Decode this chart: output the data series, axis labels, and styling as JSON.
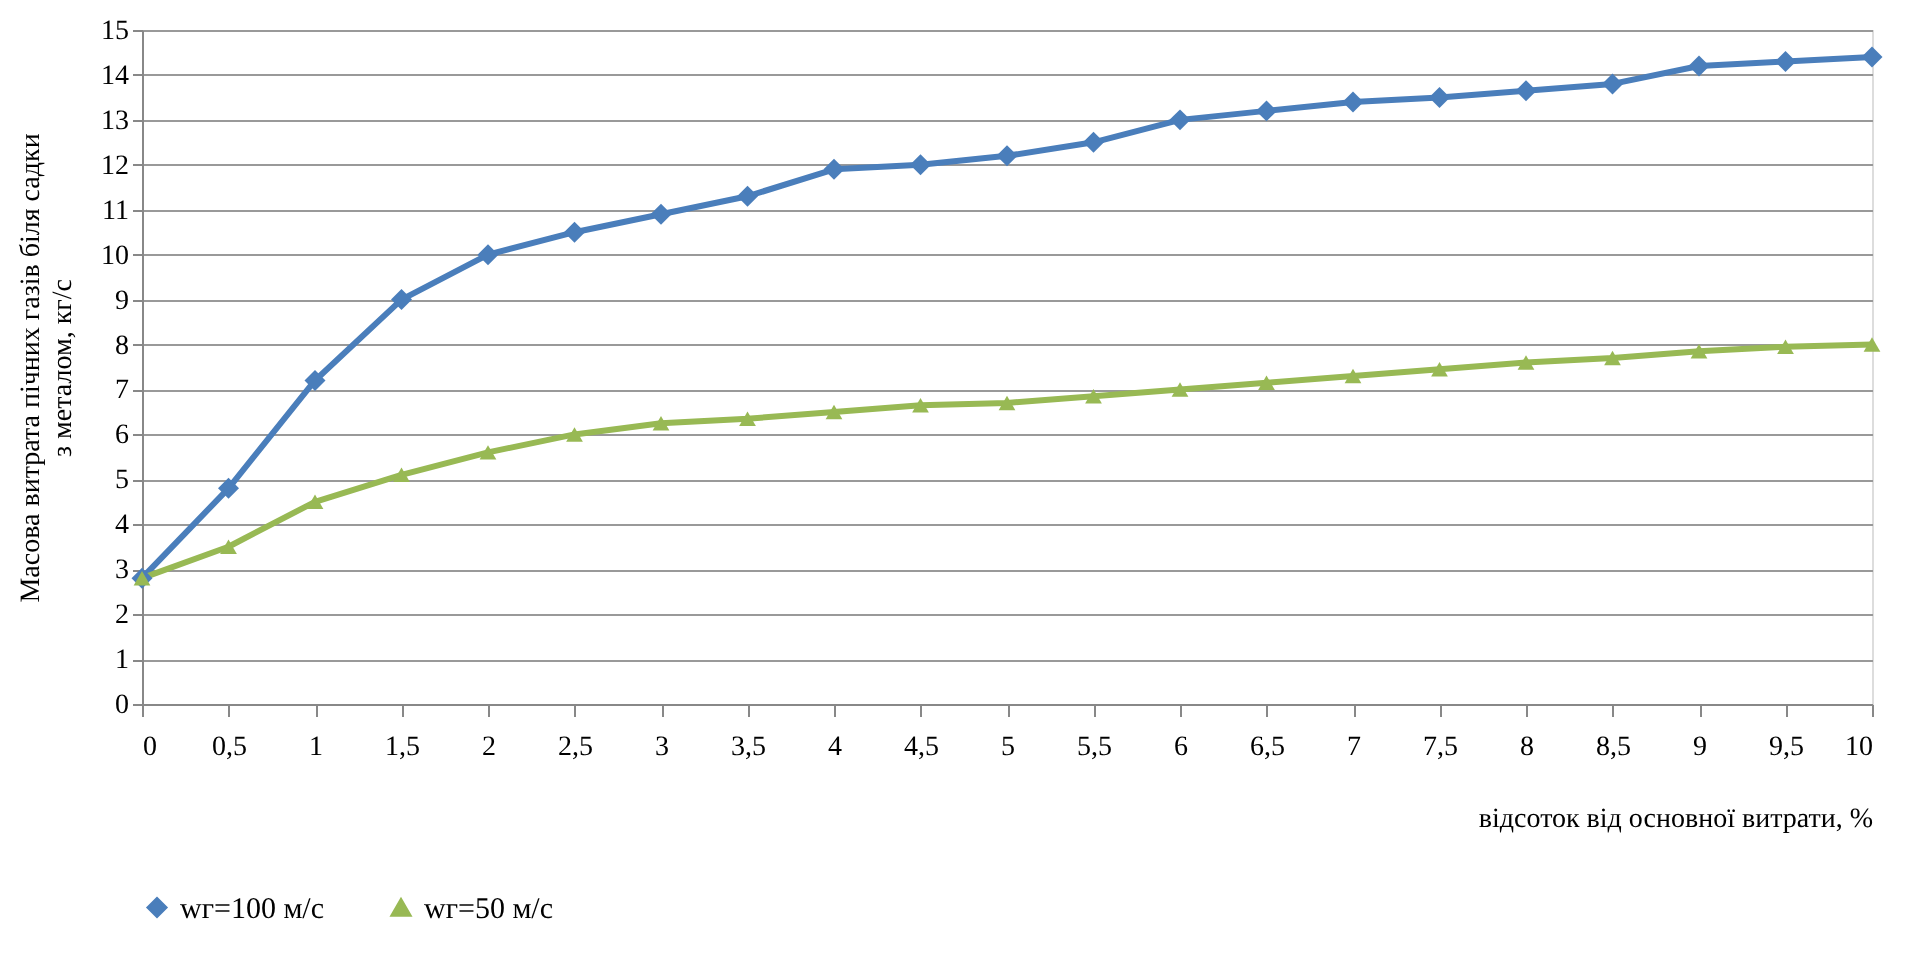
{
  "chart_data": {
    "type": "line",
    "xlabel": "відсоток від основної витрати, %",
    "ylabel": "Масова витрата пічних газів біля садки\nз металом, кг/с",
    "categories": [
      "0",
      "0,5",
      "1",
      "1,5",
      "2",
      "2,5",
      "3",
      "3,5",
      "4",
      "4,5",
      "5",
      "5,5",
      "6",
      "6,5",
      "7",
      "7,5",
      "8",
      "8,5",
      "9",
      "9,5",
      "10"
    ],
    "series": [
      {
        "name": "wг=100 м/с",
        "color": "#4a7ebb",
        "marker": "diamond",
        "values": [
          2.8,
          4.8,
          7.2,
          9.0,
          10.0,
          10.5,
          10.9,
          11.3,
          11.9,
          12.0,
          12.2,
          12.5,
          13.0,
          13.2,
          13.4,
          13.5,
          13.65,
          13.8,
          14.2,
          14.3,
          14.4
        ]
      },
      {
        "name": "wг=50 м/с",
        "color": "#98b954",
        "marker": "triangle",
        "values": [
          2.8,
          3.5,
          4.5,
          5.1,
          5.6,
          6.0,
          6.25,
          6.35,
          6.5,
          6.65,
          6.7,
          6.85,
          7.0,
          7.15,
          7.3,
          7.45,
          7.6,
          7.7,
          7.85,
          7.95,
          8.0
        ]
      }
    ],
    "ylim": [
      0,
      15
    ],
    "yticks": [
      0,
      1,
      2,
      3,
      4,
      5,
      6,
      7,
      8,
      9,
      10,
      11,
      12,
      13,
      14,
      15
    ],
    "grid": "y",
    "legend": "bottom",
    "line_style": "solid"
  }
}
